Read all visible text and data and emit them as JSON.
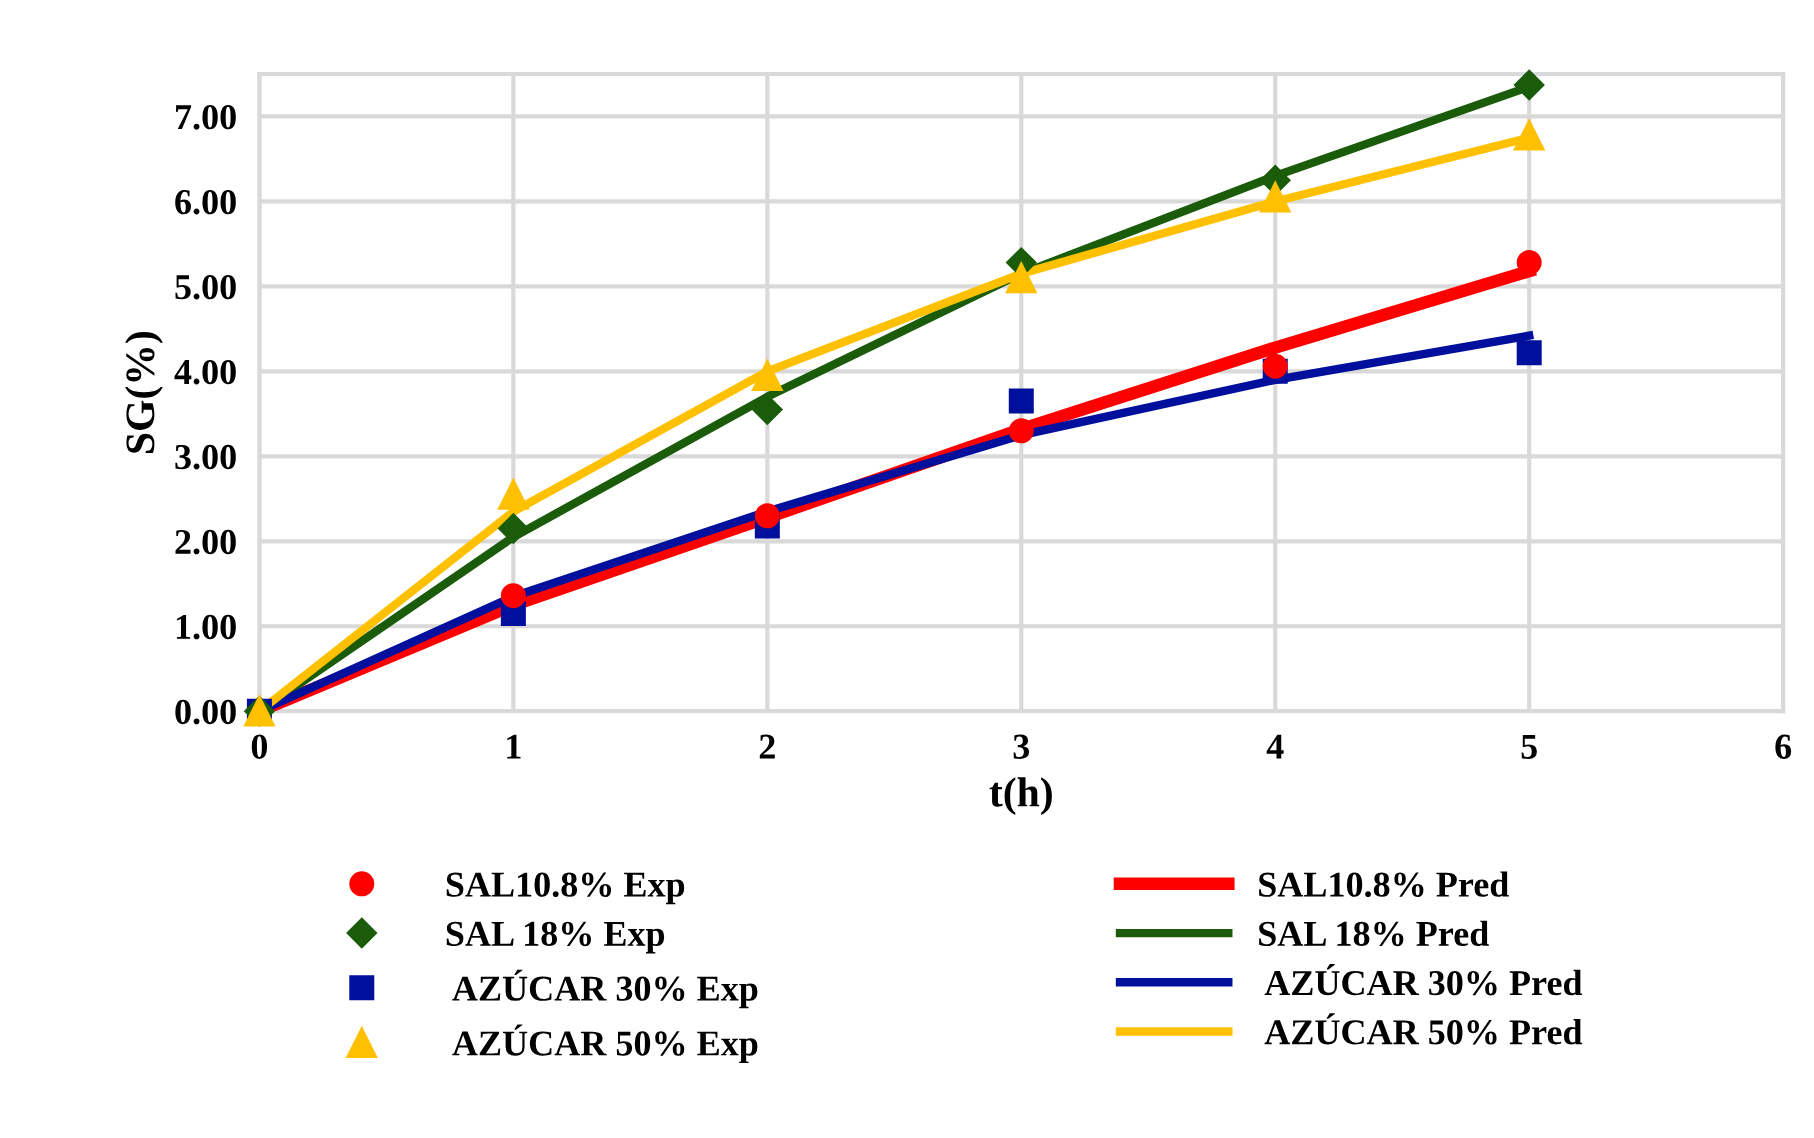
{
  "chart_data": {
    "type": "line",
    "xlabel": "t(h)",
    "ylabel": "SG(%)",
    "xlim": [
      0,
      6
    ],
    "xticks": [
      0,
      1,
      2,
      3,
      4,
      5,
      6
    ],
    "ylim": [
      0,
      7.5
    ],
    "yticks": [
      {
        "value": 0,
        "label": "0.00"
      },
      {
        "value": 1,
        "label": "1.00"
      },
      {
        "value": 2,
        "label": "2.00"
      },
      {
        "value": 3,
        "label": "3.00"
      },
      {
        "value": 4,
        "label": "4.00"
      },
      {
        "value": 5,
        "label": "5.00"
      },
      {
        "value": 6,
        "label": "6.00"
      },
      {
        "value": 7,
        "label": "7.00"
      }
    ],
    "grid": true,
    "legend": "bottom",
    "x": [
      0,
      1,
      2,
      3,
      4,
      5
    ],
    "series": [
      {
        "name": "SAL10.8% Exp",
        "type": "scatter",
        "marker": "circle",
        "color": "#ff0000",
        "values": [
          null,
          1.36,
          2.3,
          3.3,
          4.06,
          5.28
        ]
      },
      {
        "name": "SAL 18% Exp",
        "type": "scatter",
        "marker": "diamond",
        "color": "#1a5c0a",
        "values": [
          0,
          2.15,
          3.55,
          5.28,
          6.25,
          7.37
        ]
      },
      {
        "name": " AZÚCAR 30% Exp",
        "type": "scatter",
        "marker": "square",
        "color": "#000f9c",
        "values": [
          0,
          1.15,
          2.18,
          3.65,
          4.0,
          4.22
        ]
      },
      {
        "name": " AZÚCAR 50% Exp",
        "type": "scatter",
        "marker": "triangle",
        "color": "#ffc000",
        "values": [
          0,
          2.55,
          3.95,
          5.1,
          6.05,
          6.78
        ]
      },
      {
        "name": "SAL10.8% Pred",
        "marker": "none",
        "color": "#ff0000",
        "values": [
          0,
          1.25,
          2.28,
          3.32,
          4.28,
          5.18
        ]
      },
      {
        "name": "SAL 18% Pred",
        "marker": "none",
        "color": "#1a5c0a",
        "values": [
          0,
          2.05,
          3.7,
          5.15,
          6.3,
          7.35
        ]
      },
      {
        "name": " AZÚCAR 30% Pred",
        "marker": "none",
        "color": "#000f9c",
        "values": [
          0,
          1.35,
          2.35,
          3.25,
          3.9,
          4.42
        ]
      },
      {
        "name": " AZÚCAR 50% Pred",
        "marker": "none",
        "color": "#ffc000",
        "values": [
          0,
          2.35,
          4.0,
          5.15,
          6.0,
          6.75
        ]
      }
    ]
  }
}
